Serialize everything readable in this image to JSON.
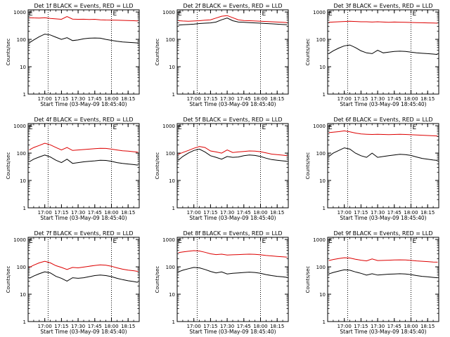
{
  "figure": {
    "ylabel": "Counts/sec",
    "xlabel": "Start Time (03-May-09 18:45:40)",
    "legend": {
      "e_marker": "E"
    },
    "series_colors": {
      "events": "#000000",
      "lld": "#dd0000"
    }
  },
  "chart_data": [
    {
      "type": "line",
      "title": "Det 1f BLACK = Events, RED = LLD",
      "ylabel": "Counts/sec",
      "xlabel": "Start Time (03-May-09 18:45:40)",
      "x_ticks": [
        "17:00",
        "17:15",
        "17:30",
        "17:45",
        "18:00",
        "18:15"
      ],
      "y_ticks": [
        "1",
        "10",
        "100",
        "1000"
      ],
      "y_scale": "log",
      "ylim": [
        1,
        1200
      ],
      "xlim": [
        "16:45",
        "18:25"
      ],
      "vlines": [
        "17:03",
        "18:00"
      ],
      "x": [
        "16:46",
        "16:50",
        "16:55",
        "17:00",
        "17:05",
        "17:10",
        "17:15",
        "17:20",
        "17:25",
        "17:30",
        "17:35",
        "17:40",
        "17:45",
        "17:50",
        "17:55",
        "18:00",
        "18:05",
        "18:10",
        "18:15",
        "18:20",
        "18:24"
      ],
      "series": [
        {
          "values": [
            75,
            95,
            125,
            155,
            145,
            120,
            100,
            115,
            90,
            95,
            105,
            110,
            112,
            110,
            100,
            92,
            85,
            80,
            78,
            76,
            74
          ]
        },
        {
          "values": [
            620,
            610,
            600,
            620,
            580,
            560,
            540,
            680,
            550,
            540,
            545,
            530,
            540,
            520,
            510,
            505,
            500,
            495,
            490,
            480,
            470
          ]
        }
      ]
    },
    {
      "type": "line",
      "title": "Det 2f BLACK = Events, RED = LLD",
      "ylabel": "Counts/sec",
      "xlabel": "Start Time (03-May-09 18:45:40)",
      "x_ticks": [
        "17:00",
        "17:15",
        "17:30",
        "17:45",
        "18:00",
        "18:15"
      ],
      "y_ticks": [
        "1",
        "10",
        "100",
        "1000"
      ],
      "y_scale": "log",
      "ylim": [
        1,
        1200
      ],
      "xlim": [
        "16:45",
        "18:25"
      ],
      "vlines": [
        "17:03",
        "18:00"
      ],
      "x": [
        "16:46",
        "16:50",
        "16:55",
        "17:00",
        "17:05",
        "17:10",
        "17:15",
        "17:20",
        "17:25",
        "17:30",
        "17:35",
        "17:40",
        "17:45",
        "17:50",
        "17:55",
        "18:00",
        "18:05",
        "18:10",
        "18:15",
        "18:20",
        "18:24"
      ],
      "series": [
        {
          "values": [
            330,
            340,
            350,
            360,
            380,
            390,
            400,
            430,
            520,
            600,
            480,
            430,
            420,
            410,
            400,
            390,
            380,
            370,
            360,
            350,
            340
          ]
        },
        {
          "values": [
            480,
            470,
            460,
            470,
            480,
            500,
            520,
            600,
            700,
            740,
            620,
            520,
            490,
            480,
            470,
            460,
            450,
            440,
            430,
            420,
            410
          ]
        }
      ]
    },
    {
      "type": "line",
      "title": "Det 3f BLACK = Events, RED = LLD",
      "ylabel": "Counts/sec",
      "xlabel": "Start Time (03-May-09 18:45:40)",
      "x_ticks": [
        "17:00",
        "17:15",
        "17:30",
        "17:45",
        "18:00",
        "18:15"
      ],
      "y_ticks": [
        "1",
        "10",
        "100",
        "1000"
      ],
      "y_scale": "log",
      "ylim": [
        1,
        1200
      ],
      "xlim": [
        "16:45",
        "18:25"
      ],
      "vlines": [
        "17:03",
        "18:00"
      ],
      "x": [
        "16:46",
        "16:50",
        "16:55",
        "17:00",
        "17:05",
        "17:10",
        "17:15",
        "17:20",
        "17:25",
        "17:30",
        "17:35",
        "17:40",
        "17:45",
        "17:50",
        "17:55",
        "18:00",
        "18:05",
        "18:10",
        "18:15",
        "18:20",
        "18:24"
      ],
      "series": [
        {
          "values": [
            30,
            38,
            48,
            58,
            62,
            50,
            38,
            32,
            30,
            40,
            32,
            34,
            36,
            37,
            36,
            34,
            32,
            31,
            30,
            29,
            28
          ]
        },
        {
          "values": [
            420,
            430,
            440,
            450,
            460,
            450,
            440,
            440,
            430,
            440,
            430,
            420,
            430,
            425,
            420,
            415,
            410,
            405,
            400,
            395,
            390
          ]
        }
      ]
    },
    {
      "type": "line",
      "title": "Det 4f BLACK = Events, RED = LLD",
      "ylabel": "Counts/sec",
      "xlabel": "Start Time (03-May-09 18:45:40)",
      "x_ticks": [
        "17:00",
        "17:15",
        "17:30",
        "17:45",
        "18:00",
        "18:15"
      ],
      "y_ticks": [
        "1",
        "10",
        "100",
        "1000"
      ],
      "y_scale": "log",
      "ylim": [
        1,
        1200
      ],
      "xlim": [
        "16:45",
        "18:25"
      ],
      "vlines": [
        "17:03",
        "18:00"
      ],
      "x": [
        "16:46",
        "16:50",
        "16:55",
        "17:00",
        "17:05",
        "17:10",
        "17:15",
        "17:20",
        "17:25",
        "17:30",
        "17:35",
        "17:40",
        "17:45",
        "17:50",
        "17:55",
        "18:00",
        "18:05",
        "18:10",
        "18:15",
        "18:20",
        "18:24"
      ],
      "series": [
        {
          "values": [
            48,
            60,
            72,
            85,
            72,
            55,
            45,
            60,
            42,
            45,
            48,
            50,
            52,
            55,
            54,
            50,
            45,
            42,
            40,
            38,
            36
          ]
        },
        {
          "values": [
            130,
            160,
            190,
            230,
            200,
            160,
            130,
            160,
            125,
            130,
            135,
            140,
            145,
            150,
            148,
            140,
            130,
            122,
            118,
            112,
            108
          ]
        }
      ]
    },
    {
      "type": "line",
      "title": "Det 5f BLACK = Events, RED = LLD",
      "ylabel": "Counts/sec",
      "xlabel": "Start Time (03-May-09 18:45:40)",
      "x_ticks": [
        "17:00",
        "17:15",
        "17:30",
        "17:45",
        "18:00",
        "18:15"
      ],
      "y_ticks": [
        "1",
        "10",
        "100",
        "1000"
      ],
      "y_scale": "log",
      "ylim": [
        1,
        1200
      ],
      "xlim": [
        "16:45",
        "18:25"
      ],
      "vlines": [
        "17:03",
        "18:00"
      ],
      "x": [
        "16:46",
        "16:50",
        "16:55",
        "17:00",
        "17:05",
        "17:10",
        "17:15",
        "17:20",
        "17:25",
        "17:30",
        "17:35",
        "17:40",
        "17:45",
        "17:50",
        "17:55",
        "18:00",
        "18:05",
        "18:10",
        "18:15",
        "18:20",
        "18:24"
      ],
      "series": [
        {
          "values": [
            55,
            75,
            100,
            125,
            140,
            110,
            80,
            70,
            60,
            75,
            70,
            72,
            80,
            85,
            82,
            75,
            65,
            58,
            55,
            52,
            50
          ]
        },
        {
          "values": [
            90,
            105,
            125,
            150,
            175,
            160,
            120,
            110,
            100,
            130,
            105,
            110,
            115,
            120,
            118,
            112,
            102,
            92,
            88,
            84,
            80
          ]
        }
      ]
    },
    {
      "type": "line",
      "title": "Det 6f BLACK = Events, RED = LLD",
      "ylabel": "Counts/sec",
      "xlabel": "Start Time (03-May-09 18:45:40)",
      "x_ticks": [
        "17:00",
        "17:15",
        "17:30",
        "17:45",
        "18:00",
        "18:15"
      ],
      "y_ticks": [
        "1",
        "10",
        "100",
        "1000"
      ],
      "y_scale": "log",
      "ylim": [
        1,
        1200
      ],
      "xlim": [
        "16:45",
        "18:25"
      ],
      "vlines": [
        "17:03",
        "18:00"
      ],
      "x": [
        "16:46",
        "16:50",
        "16:55",
        "17:00",
        "17:05",
        "17:10",
        "17:15",
        "17:20",
        "17:25",
        "17:30",
        "17:35",
        "17:40",
        "17:45",
        "17:50",
        "17:55",
        "18:00",
        "18:05",
        "18:10",
        "18:15",
        "18:20",
        "18:24"
      ],
      "series": [
        {
          "values": [
            75,
            100,
            125,
            155,
            140,
            100,
            80,
            70,
            100,
            70,
            75,
            80,
            85,
            90,
            88,
            82,
            72,
            64,
            60,
            56,
            54
          ]
        },
        {
          "values": [
            560,
            580,
            610,
            650,
            600,
            540,
            500,
            490,
            480,
            490,
            480,
            475,
            480,
            485,
            480,
            470,
            460,
            450,
            440,
            430,
            420
          ]
        }
      ]
    },
    {
      "type": "line",
      "title": "Det 7f BLACK = Events, RED = LLD",
      "ylabel": "Counts/sec",
      "xlabel": "Start Time (03-May-09 18:45:40)",
      "x_ticks": [
        "17:00",
        "17:15",
        "17:30",
        "17:45",
        "18:00",
        "18:15"
      ],
      "y_ticks": [
        "1",
        "10",
        "100",
        "1000"
      ],
      "y_scale": "log",
      "ylim": [
        1,
        1200
      ],
      "xlim": [
        "16:45",
        "18:25"
      ],
      "vlines": [
        "17:03",
        "18:00"
      ],
      "x": [
        "16:46",
        "16:50",
        "16:55",
        "17:00",
        "17:05",
        "17:10",
        "17:15",
        "17:20",
        "17:25",
        "17:30",
        "17:35",
        "17:40",
        "17:45",
        "17:50",
        "17:55",
        "18:00",
        "18:05",
        "18:10",
        "18:15",
        "18:20",
        "18:24"
      ],
      "series": [
        {
          "values": [
            38,
            46,
            56,
            66,
            60,
            45,
            38,
            30,
            40,
            38,
            40,
            44,
            48,
            50,
            48,
            44,
            38,
            34,
            31,
            29,
            27
          ]
        },
        {
          "values": [
            95,
            115,
            140,
            160,
            140,
            110,
            95,
            80,
            95,
            92,
            98,
            105,
            112,
            118,
            115,
            105,
            92,
            82,
            76,
            72,
            68
          ]
        }
      ]
    },
    {
      "type": "line",
      "title": "Det 8f BLACK = Events, RED = LLD",
      "ylabel": "Counts/sec",
      "xlabel": "Start Time (03-May-09 18:45:40)",
      "x_ticks": [
        "17:00",
        "17:15",
        "17:30",
        "17:45",
        "18:00",
        "18:15"
      ],
      "y_ticks": [
        "1",
        "10",
        "100",
        "1000"
      ],
      "y_scale": "log",
      "ylim": [
        1,
        1200
      ],
      "xlim": [
        "16:45",
        "18:25"
      ],
      "vlines": [
        "17:03",
        "18:00"
      ],
      "x": [
        "16:46",
        "16:50",
        "16:55",
        "17:00",
        "17:05",
        "17:10",
        "17:15",
        "17:20",
        "17:25",
        "17:30",
        "17:35",
        "17:40",
        "17:45",
        "17:50",
        "17:55",
        "18:00",
        "18:05",
        "18:10",
        "18:15",
        "18:20",
        "18:24"
      ],
      "series": [
        {
          "values": [
            65,
            75,
            85,
            95,
            92,
            80,
            68,
            60,
            65,
            55,
            58,
            60,
            62,
            64,
            62,
            58,
            52,
            48,
            45,
            43,
            41
          ]
        },
        {
          "values": [
            330,
            350,
            370,
            390,
            380,
            340,
            300,
            280,
            290,
            270,
            275,
            280,
            285,
            290,
            285,
            275,
            260,
            250,
            240,
            232,
            225
          ]
        }
      ]
    },
    {
      "type": "line",
      "title": "Det 9f BLACK = Events, RED = LLD",
      "ylabel": "Counts/sec",
      "xlabel": "Start Time (03-May-09 18:45:40)",
      "x_ticks": [
        "17:00",
        "17:15",
        "17:30",
        "17:45",
        "18:00",
        "18:15"
      ],
      "y_ticks": [
        "1",
        "10",
        "100",
        "1000"
      ],
      "y_scale": "log",
      "ylim": [
        1,
        1200
      ],
      "xlim": [
        "16:45",
        "18:25"
      ],
      "vlines": [
        "17:03",
        "18:00"
      ],
      "x": [
        "16:46",
        "16:50",
        "16:55",
        "17:00",
        "17:05",
        "17:10",
        "17:15",
        "17:20",
        "17:25",
        "17:30",
        "17:35",
        "17:40",
        "17:45",
        "17:50",
        "17:55",
        "18:00",
        "18:05",
        "18:10",
        "18:15",
        "18:20",
        "18:24"
      ],
      "series": [
        {
          "values": [
            55,
            62,
            70,
            78,
            75,
            65,
            58,
            50,
            56,
            50,
            52,
            54,
            55,
            56,
            55,
            52,
            48,
            45,
            43,
            41,
            40
          ]
        },
        {
          "values": [
            170,
            185,
            200,
            215,
            210,
            190,
            175,
            165,
            195,
            170,
            172,
            175,
            178,
            180,
            178,
            172,
            165,
            160,
            155,
            150,
            148
          ]
        }
      ]
    }
  ]
}
